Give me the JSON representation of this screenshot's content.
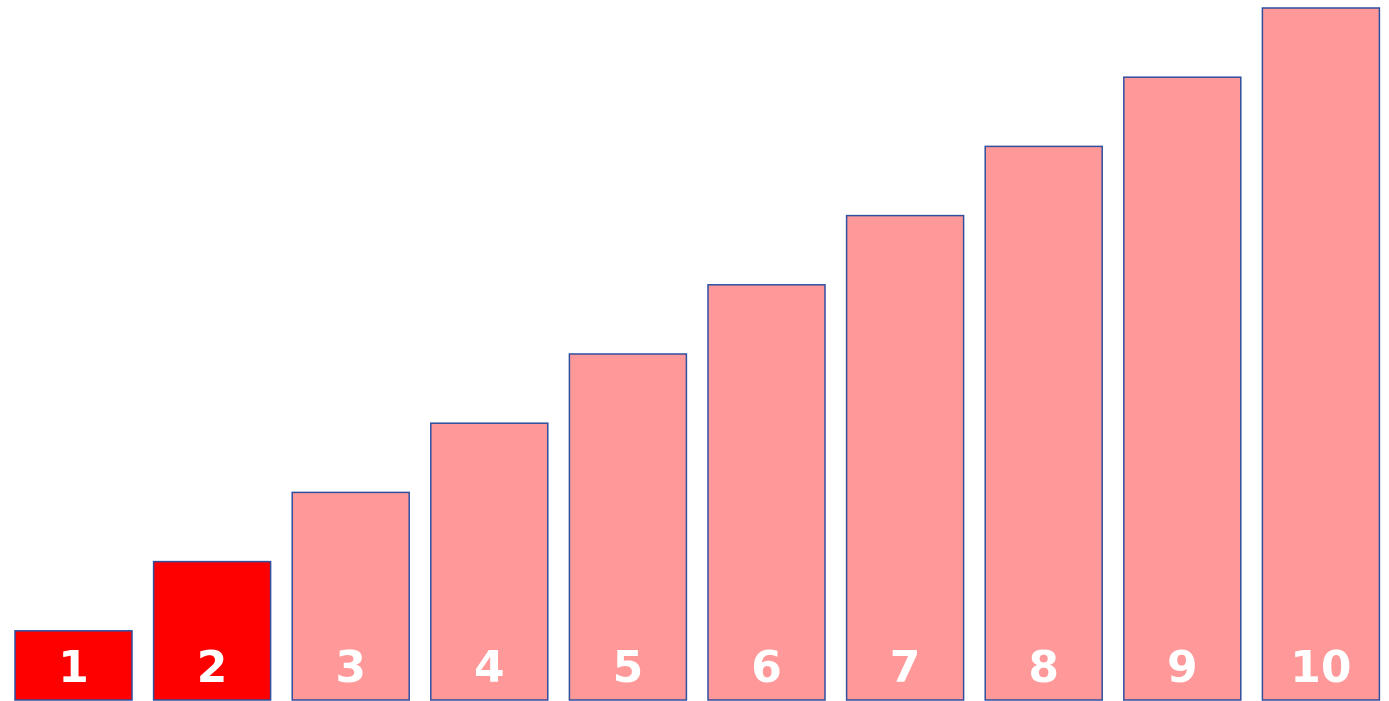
{
  "chart_data": {
    "type": "bar",
    "title": "",
    "xlabel": "",
    "ylabel": "",
    "categories": [
      "1",
      "2",
      "3",
      "4",
      "5",
      "6",
      "7",
      "8",
      "9",
      "10"
    ],
    "values": [
      1,
      2,
      3,
      4,
      5,
      6,
      7,
      8,
      9,
      10
    ],
    "highlighted": [
      true,
      true,
      false,
      false,
      false,
      false,
      false,
      false,
      false,
      false
    ],
    "ylim": [
      0,
      10
    ],
    "grid": false,
    "legend": "none",
    "colors": {
      "highlight_fill": "#ff0000",
      "normal_fill": "#ff9999",
      "bar_outline": "#2f4f9f",
      "label_color": "#ffffff"
    }
  }
}
